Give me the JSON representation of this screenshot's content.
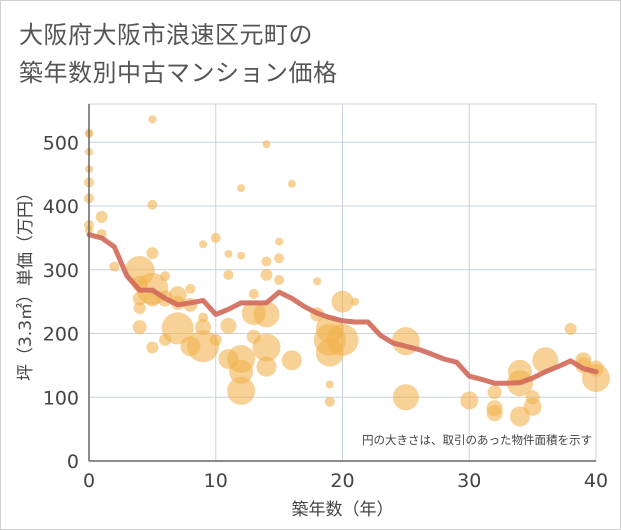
{
  "title_line1": "大阪府大阪市浪速区元町の",
  "title_line2": "築年数別中古マンション価格",
  "chart_data": {
    "type": "scatter",
    "xlabel": "築年数（年）",
    "ylabel": "坪（3.3㎡）単価（万円）",
    "xlim": [
      0,
      40
    ],
    "ylim": [
      0,
      560
    ],
    "xticks": [
      0,
      10,
      20,
      30,
      40
    ],
    "yticks": [
      0,
      100,
      200,
      300,
      400,
      500
    ],
    "grid": true,
    "note": "円の大きさは、取引のあった物件面積を示す",
    "colors": {
      "bubble": "#f2b24e",
      "line": "#d0695a",
      "axis": "#666666",
      "grid": "#c8d3de",
      "text": "#444444"
    },
    "bubbles": [
      {
        "x": 0,
        "y": 515,
        "r": 4
      },
      {
        "x": 0,
        "y": 513,
        "r": 4
      },
      {
        "x": 0,
        "y": 485,
        "r": 4
      },
      {
        "x": 0,
        "y": 458,
        "r": 4
      },
      {
        "x": 0,
        "y": 437,
        "r": 5
      },
      {
        "x": 0,
        "y": 412,
        "r": 5
      },
      {
        "x": 0,
        "y": 370,
        "r": 5
      },
      {
        "x": 0,
        "y": 362,
        "r": 4
      },
      {
        "x": 1,
        "y": 383,
        "r": 6
      },
      {
        "x": 1,
        "y": 356,
        "r": 5
      },
      {
        "x": 2,
        "y": 305,
        "r": 5
      },
      {
        "x": 4,
        "y": 298,
        "r": 15
      },
      {
        "x": 4,
        "y": 278,
        "r": 8
      },
      {
        "x": 4,
        "y": 255,
        "r": 7
      },
      {
        "x": 4,
        "y": 240,
        "r": 6
      },
      {
        "x": 4,
        "y": 210,
        "r": 7
      },
      {
        "x": 5,
        "y": 536,
        "r": 4
      },
      {
        "x": 5,
        "y": 402,
        "r": 5
      },
      {
        "x": 5,
        "y": 326,
        "r": 6
      },
      {
        "x": 5,
        "y": 270,
        "r": 16
      },
      {
        "x": 5,
        "y": 255,
        "r": 8
      },
      {
        "x": 5,
        "y": 178,
        "r": 6
      },
      {
        "x": 6,
        "y": 290,
        "r": 5
      },
      {
        "x": 6,
        "y": 255,
        "r": 8
      },
      {
        "x": 6,
        "y": 190,
        "r": 6
      },
      {
        "x": 7,
        "y": 260,
        "r": 9
      },
      {
        "x": 7,
        "y": 248,
        "r": 7
      },
      {
        "x": 7,
        "y": 208,
        "r": 16
      },
      {
        "x": 8,
        "y": 270,
        "r": 5
      },
      {
        "x": 8,
        "y": 245,
        "r": 7
      },
      {
        "x": 8,
        "y": 180,
        "r": 10
      },
      {
        "x": 9,
        "y": 340,
        "r": 4
      },
      {
        "x": 9,
        "y": 225,
        "r": 5
      },
      {
        "x": 9,
        "y": 210,
        "r": 8
      },
      {
        "x": 9,
        "y": 180,
        "r": 16
      },
      {
        "x": 10,
        "y": 350,
        "r": 5
      },
      {
        "x": 10,
        "y": 190,
        "r": 6
      },
      {
        "x": 11,
        "y": 325,
        "r": 4
      },
      {
        "x": 11,
        "y": 292,
        "r": 5
      },
      {
        "x": 11,
        "y": 212,
        "r": 8
      },
      {
        "x": 11,
        "y": 160,
        "r": 10
      },
      {
        "x": 12,
        "y": 428,
        "r": 4
      },
      {
        "x": 12,
        "y": 322,
        "r": 4
      },
      {
        "x": 12,
        "y": 160,
        "r": 14
      },
      {
        "x": 12,
        "y": 140,
        "r": 12
      },
      {
        "x": 12,
        "y": 110,
        "r": 14
      },
      {
        "x": 13,
        "y": 262,
        "r": 5
      },
      {
        "x": 13,
        "y": 232,
        "r": 12
      },
      {
        "x": 13,
        "y": 195,
        "r": 7
      },
      {
        "x": 14,
        "y": 497,
        "r": 4
      },
      {
        "x": 14,
        "y": 313,
        "r": 5
      },
      {
        "x": 14,
        "y": 292,
        "r": 6
      },
      {
        "x": 14,
        "y": 230,
        "r": 13
      },
      {
        "x": 14,
        "y": 178,
        "r": 14
      },
      {
        "x": 14,
        "y": 148,
        "r": 10
      },
      {
        "x": 15,
        "y": 344,
        "r": 4
      },
      {
        "x": 15,
        "y": 318,
        "r": 5
      },
      {
        "x": 15,
        "y": 284,
        "r": 5
      },
      {
        "x": 16,
        "y": 435,
        "r": 4
      },
      {
        "x": 16,
        "y": 158,
        "r": 10
      },
      {
        "x": 18,
        "y": 282,
        "r": 4
      },
      {
        "x": 18,
        "y": 230,
        "r": 7
      },
      {
        "x": 19,
        "y": 207,
        "r": 14
      },
      {
        "x": 19,
        "y": 190,
        "r": 16
      },
      {
        "x": 19,
        "y": 170,
        "r": 14
      },
      {
        "x": 19,
        "y": 120,
        "r": 4
      },
      {
        "x": 19,
        "y": 93,
        "r": 5
      },
      {
        "x": 20,
        "y": 250,
        "r": 11
      },
      {
        "x": 20,
        "y": 190,
        "r": 16
      },
      {
        "x": 21,
        "y": 250,
        "r": 4
      },
      {
        "x": 25,
        "y": 188,
        "r": 14
      },
      {
        "x": 25,
        "y": 100,
        "r": 13
      },
      {
        "x": 30,
        "y": 95,
        "r": 9
      },
      {
        "x": 32,
        "y": 108,
        "r": 7
      },
      {
        "x": 32,
        "y": 83,
        "r": 8
      },
      {
        "x": 32,
        "y": 75,
        "r": 8
      },
      {
        "x": 34,
        "y": 140,
        "r": 12
      },
      {
        "x": 34,
        "y": 122,
        "r": 13
      },
      {
        "x": 34,
        "y": 70,
        "r": 10
      },
      {
        "x": 35,
        "y": 100,
        "r": 7
      },
      {
        "x": 35,
        "y": 85,
        "r": 9
      },
      {
        "x": 36,
        "y": 158,
        "r": 13
      },
      {
        "x": 38,
        "y": 207,
        "r": 6
      },
      {
        "x": 39,
        "y": 158,
        "r": 8
      },
      {
        "x": 39,
        "y": 150,
        "r": 8
      },
      {
        "x": 40,
        "y": 130,
        "r": 14
      },
      {
        "x": 40,
        "y": 145,
        "r": 8
      }
    ],
    "line": {
      "x": [
        0,
        1,
        2,
        3,
        4,
        5,
        6,
        7,
        8,
        9,
        10,
        11,
        12,
        13,
        14,
        15,
        16,
        17,
        18,
        19,
        20,
        21,
        22,
        23,
        24,
        25,
        26,
        27,
        28,
        29,
        30,
        31,
        32,
        33,
        34,
        35,
        36,
        37,
        38,
        39,
        40
      ],
      "y": [
        355,
        350,
        336,
        290,
        268,
        268,
        255,
        245,
        248,
        252,
        230,
        238,
        248,
        248,
        248,
        265,
        255,
        242,
        232,
        225,
        220,
        218,
        218,
        197,
        185,
        180,
        175,
        168,
        160,
        155,
        133,
        128,
        122,
        122,
        123,
        130,
        140,
        148,
        157,
        145,
        140
      ]
    }
  }
}
